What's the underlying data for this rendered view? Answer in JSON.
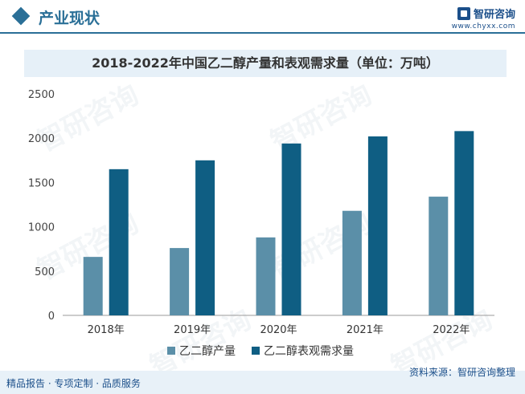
{
  "header": {
    "title": "产业现状",
    "logo_name": "智研咨询",
    "logo_url": "www.chyxx.com"
  },
  "chart_data": {
    "type": "bar",
    "title": "2018-2022年中国乙二醇产量和表观需求量（单位：万吨）",
    "categories": [
      "2018年",
      "2019年",
      "2020年",
      "2021年",
      "2022年"
    ],
    "series": [
      {
        "name": "乙二醇产量",
        "values": [
          660,
          760,
          880,
          1180,
          1340
        ],
        "color": "#5b8fa8"
      },
      {
        "name": "乙二醇表观需求量",
        "values": [
          1650,
          1750,
          1940,
          2020,
          2080
        ],
        "color": "#0f5e83"
      }
    ],
    "yticks": [
      "0",
      "500",
      "1000",
      "1500",
      "2000",
      "2500"
    ],
    "ylim": [
      0,
      2500
    ],
    "grid": false,
    "legend": "bottom"
  },
  "footer": {
    "left": "精品报告 · 专项定制 · 品质服务",
    "right": "资料来源：智研咨询整理"
  },
  "watermarks": [
    "智研咨询",
    "智研咨询",
    "智研咨询",
    "智研咨询",
    "智研咨询",
    "智研咨询"
  ]
}
